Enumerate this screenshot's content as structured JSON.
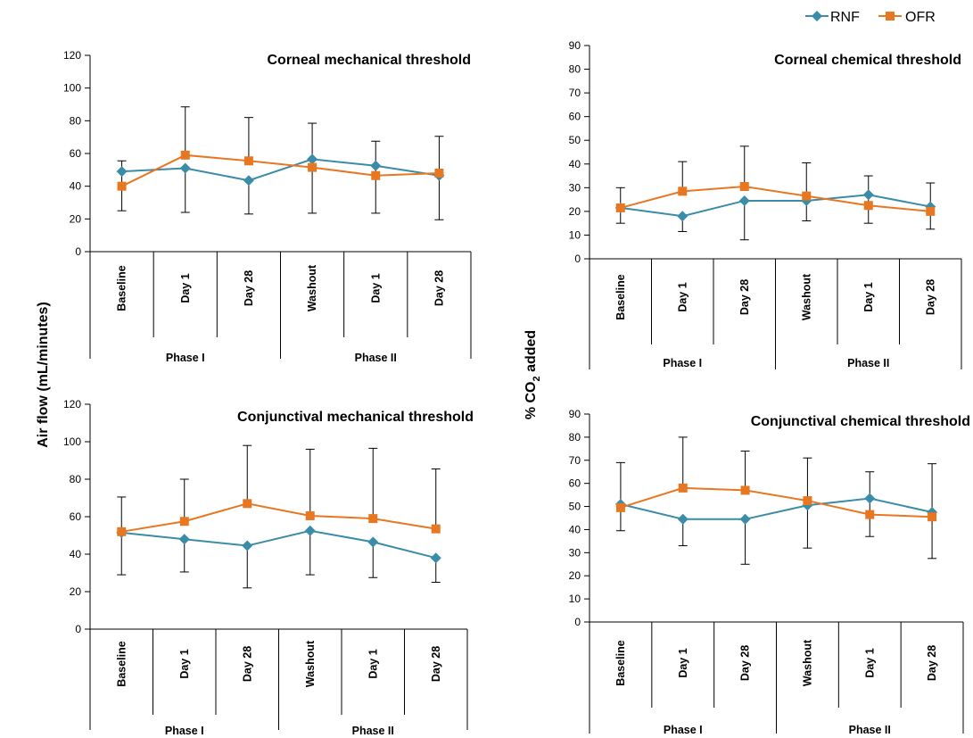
{
  "legend": [
    {
      "name": "RNF",
      "color": "#3A8CA8",
      "marker": "diamond"
    },
    {
      "name": "OFR",
      "color": "#E87722",
      "marker": "square"
    }
  ],
  "left_ylabel": "Air flow (mL/minutes)",
  "right_ylabel": {
    "prefix": "% CO",
    "subscript": "2",
    "suffix": " added"
  },
  "chart_data": [
    {
      "type": "line",
      "title": "Corneal mechanical threshold",
      "ylim": [
        0,
        120
      ],
      "yticks": [
        0,
        20,
        40,
        60,
        80,
        100,
        120
      ],
      "categories": [
        "Baseline",
        "Day 1",
        "Day 28",
        "Washout",
        "Day 1",
        "Day 28"
      ],
      "groups": [
        {
          "label": "Phase I",
          "span": 3
        },
        {
          "label": "Phase II",
          "span": 3
        }
      ],
      "series": [
        {
          "name": "RNF",
          "values": [
            49,
            51,
            43.5,
            56.5,
            52.5,
            46.5
          ],
          "err_low": [
            25,
            24,
            23,
            23.5,
            23.5,
            19.5
          ],
          "err_high": [
            55.5,
            null,
            null,
            null,
            null,
            null
          ]
        },
        {
          "name": "OFR",
          "values": [
            40,
            59,
            55.5,
            51.5,
            46.5,
            48
          ],
          "err_low": [
            null,
            null,
            null,
            null,
            null,
            null
          ],
          "err_high": [
            null,
            88.5,
            82,
            78.5,
            67.5,
            70.5
          ]
        }
      ]
    },
    {
      "type": "line",
      "title": "Corneal chemical threshold",
      "ylim": [
        0,
        90
      ],
      "yticks": [
        0,
        10,
        20,
        30,
        40,
        50,
        60,
        70,
        80,
        90
      ],
      "categories": [
        "Baseline",
        "Day 1",
        "Day 28",
        "Washout",
        "Day 1",
        "Day 28"
      ],
      "groups": [
        {
          "label": "Phase I",
          "span": 3
        },
        {
          "label": "Phase II",
          "span": 3
        }
      ],
      "series": [
        {
          "name": "RNF",
          "values": [
            21.5,
            18,
            24.5,
            24.5,
            27,
            22
          ],
          "err_low": [
            15,
            11.5,
            8,
            16,
            15,
            12.5
          ],
          "err_high": [
            null,
            null,
            null,
            null,
            35,
            null
          ]
        },
        {
          "name": "OFR",
          "values": [
            21.5,
            28.5,
            30.5,
            26.5,
            22.5,
            20
          ],
          "err_low": [
            null,
            null,
            null,
            null,
            null,
            null
          ],
          "err_high": [
            30,
            41,
            47.5,
            40.5,
            null,
            32
          ]
        }
      ]
    },
    {
      "type": "line",
      "title": "Conjunctival mechanical threshold",
      "ylim": [
        0,
        120
      ],
      "yticks": [
        0,
        20,
        40,
        60,
        80,
        100,
        120
      ],
      "categories": [
        "Baseline",
        "Day 1",
        "Day 28",
        "Washout",
        "Day 1",
        "Day 28"
      ],
      "groups": [
        {
          "label": "Phase I",
          "span": 3
        },
        {
          "label": "Phase II",
          "span": 3
        }
      ],
      "series": [
        {
          "name": "RNF",
          "values": [
            51.5,
            48,
            44.5,
            52.5,
            46.5,
            38
          ],
          "err_low": [
            29,
            30.5,
            22,
            29,
            27.5,
            25
          ],
          "err_high": [
            null,
            null,
            null,
            null,
            null,
            null
          ]
        },
        {
          "name": "OFR",
          "values": [
            52,
            57.5,
            67,
            60.5,
            59,
            53.5
          ],
          "err_low": [
            null,
            null,
            null,
            null,
            null,
            null
          ],
          "err_high": [
            70.5,
            80,
            98,
            96,
            96.5,
            85.5
          ]
        }
      ]
    },
    {
      "type": "line",
      "title": "Conjunctival chemical threshold",
      "ylim": [
        0,
        90
      ],
      "yticks": [
        0,
        10,
        20,
        30,
        40,
        50,
        60,
        70,
        80,
        90
      ],
      "categories": [
        "Baseline",
        "Day 1",
        "Day 28",
        "Washout",
        "Day 1",
        "Day 28"
      ],
      "groups": [
        {
          "label": "Phase I",
          "span": 3
        },
        {
          "label": "Phase II",
          "span": 3
        }
      ],
      "series": [
        {
          "name": "RNF",
          "values": [
            51,
            44.5,
            44.5,
            50.5,
            53.5,
            47.5
          ],
          "err_low": [
            39.5,
            33,
            25,
            32,
            37,
            27.5
          ],
          "err_high": [
            null,
            null,
            null,
            null,
            65,
            68.5
          ]
        },
        {
          "name": "OFR",
          "values": [
            49.5,
            58,
            57,
            52.5,
            46.5,
            45.5
          ],
          "err_low": [
            null,
            null,
            null,
            null,
            null,
            null
          ],
          "err_high": [
            69,
            80,
            74,
            71,
            null,
            null
          ]
        }
      ]
    }
  ]
}
